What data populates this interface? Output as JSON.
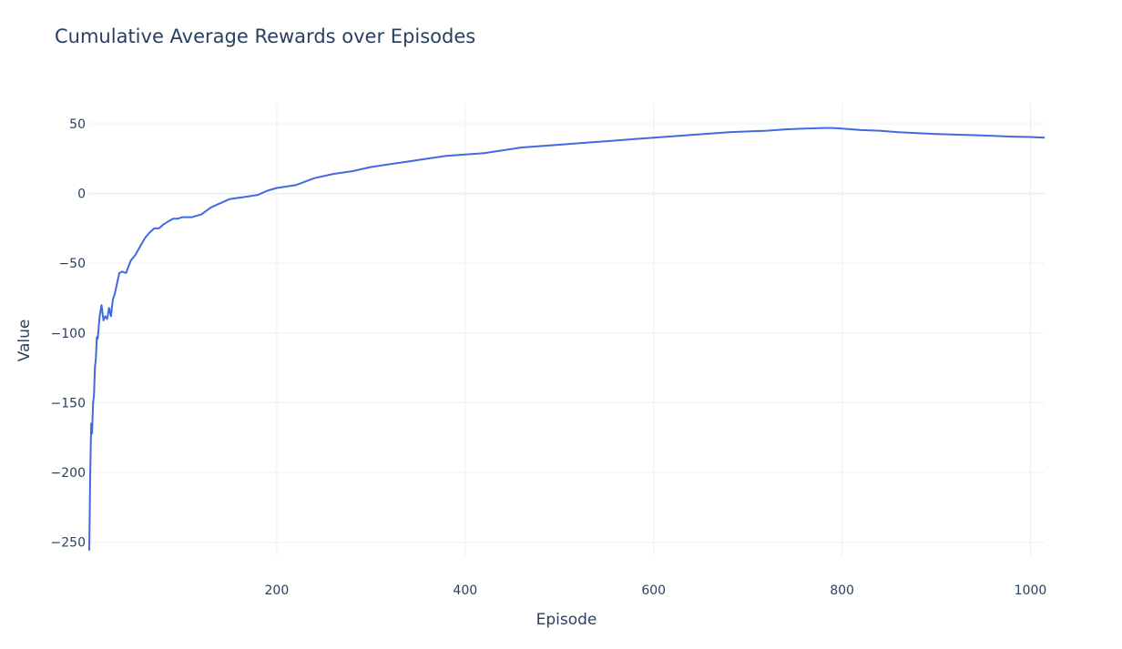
{
  "chart_data": {
    "type": "line",
    "title": "Cumulative Average Rewards over Episodes",
    "xlabel": "Episode",
    "ylabel": "Value",
    "xlim": [
      0,
      1015
    ],
    "ylim": [
      -260,
      65
    ],
    "x_ticks": [
      200,
      400,
      600,
      800,
      1000
    ],
    "x_tick_labels": [
      "200",
      "400",
      "600",
      "800",
      "1000"
    ],
    "y_ticks": [
      50,
      0,
      -50,
      -100,
      -150,
      -200,
      -250
    ],
    "y_tick_labels": [
      "50",
      "0",
      "−50",
      "−100",
      "−150",
      "−200",
      "−250"
    ],
    "grid": true,
    "line_color": "#4169e1",
    "grid_color": "#ebf0f8",
    "series": [
      {
        "x": [
          1,
          2,
          3,
          4,
          5,
          6,
          7,
          8,
          9,
          10,
          12,
          14,
          16,
          18,
          20,
          22,
          24,
          26,
          28,
          30,
          33,
          36,
          40,
          45,
          50,
          55,
          60,
          65,
          70,
          75,
          80,
          85,
          90,
          95,
          100,
          110,
          120,
          130,
          140,
          150,
          160,
          170,
          180,
          190,
          200,
          220,
          240,
          260,
          280,
          300,
          320,
          340,
          360,
          380,
          400,
          420,
          440,
          460,
          480,
          500,
          520,
          540,
          560,
          580,
          600,
          620,
          640,
          660,
          680,
          700,
          720,
          740,
          760,
          780,
          790,
          800,
          820,
          840,
          860,
          880,
          900,
          920,
          940,
          960,
          980,
          1000,
          1015
        ],
        "y": [
          -256,
          -200,
          -165,
          -172,
          -150,
          -145,
          -125,
          -118,
          -103,
          -104,
          -88,
          -80,
          -91,
          -88,
          -90,
          -82,
          -88,
          -76,
          -72,
          -66,
          -57,
          -56,
          -57,
          -48,
          -44,
          -38,
          -32,
          -28,
          -25,
          -25,
          -22,
          -20,
          -18,
          -18,
          -17,
          -17,
          -15,
          -10,
          -7,
          -4,
          -3,
          -2,
          -1,
          2,
          4,
          6,
          11,
          14,
          16,
          19,
          21,
          23,
          25,
          27,
          28,
          29,
          31,
          33,
          34,
          35,
          36,
          37,
          38,
          39,
          40,
          41,
          42,
          43,
          44,
          44.5,
          45,
          46,
          46.5,
          47,
          47,
          46.5,
          45.5,
          45,
          44,
          43.3,
          42.7,
          42.2,
          41.8,
          41.3,
          40.8,
          40.5,
          40
        ]
      }
    ]
  }
}
